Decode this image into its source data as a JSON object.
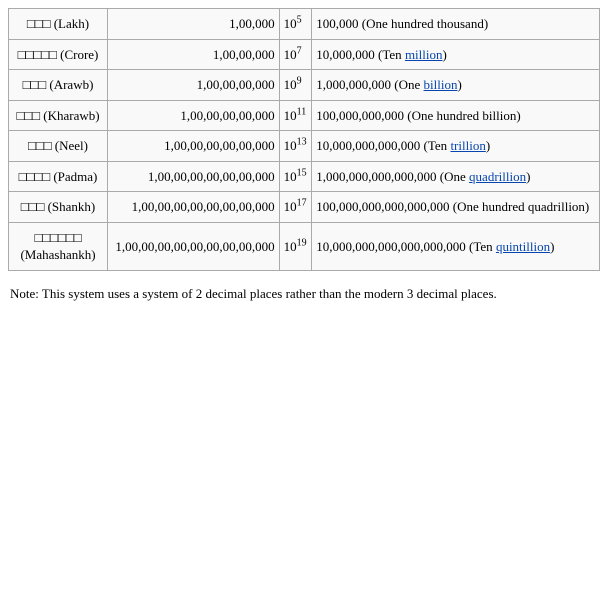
{
  "table": {
    "border_color": "#aaaaaa",
    "background_color": "#f9f9f9",
    "link_color": "#0645ad",
    "font_family": "Times New Roman",
    "font_size_pt": 10,
    "rows": [
      {
        "name_prefix": "□□□",
        "name_latin": "(Lakh)",
        "indian_number": "1,00,000",
        "power_base": "10",
        "power_exp": "5",
        "western_before": "100,000 (One hundred thousand)",
        "western_link": "",
        "western_after": ""
      },
      {
        "name_prefix": "□□□□□",
        "name_latin": "(Crore)",
        "indian_number": "1,00,00,000",
        "power_base": "10",
        "power_exp": "7",
        "western_before": "10,000,000 (Ten ",
        "western_link": "million",
        "western_after": ")"
      },
      {
        "name_prefix": "□□□",
        "name_latin": "(Arawb)",
        "indian_number": "1,00,00,00,000",
        "power_base": "10",
        "power_exp": "9",
        "western_before": "1,000,000,000 (One ",
        "western_link": "billion",
        "western_after": ")"
      },
      {
        "name_prefix": "□□□",
        "name_latin": "(Kharawb)",
        "indian_number": "1,00,00,00,00,000",
        "power_base": "10",
        "power_exp": "11",
        "western_before": "100,000,000,000 (One hundred billion)",
        "western_link": "",
        "western_after": ""
      },
      {
        "name_prefix": "□□□",
        "name_latin": "(Neel)",
        "indian_number": "1,00,00,00,00,00,000",
        "power_base": "10",
        "power_exp": "13",
        "western_before": "10,000,000,000,000 (Ten ",
        "western_link": "trillion",
        "western_after": ")"
      },
      {
        "name_prefix": "□□□□",
        "name_latin": "(Padma)",
        "indian_number": "1,00,00,00,00,00,00,000",
        "power_base": "10",
        "power_exp": "15",
        "western_before": "1,000,000,000,000,000 (One ",
        "western_link": "quadrillion",
        "western_after": ")"
      },
      {
        "name_prefix": "□□□",
        "name_latin": "(Shankh)",
        "indian_number": "1,00,00,00,00,00,00,00,000",
        "power_base": "10",
        "power_exp": "17",
        "western_before": "100,000,000,000,000,000 (One hundred quadrillion)",
        "western_link": "",
        "western_after": ""
      },
      {
        "name_prefix": "□□□□□□",
        "name_latin": "(Mahashankh)",
        "indian_number": "1,00,00,00,00,00,00,00,00,000",
        "power_base": "10",
        "power_exp": "19",
        "western_before": "10,000,000,000,000,000,000 (Ten ",
        "western_link": "quintillion",
        "western_after": ")"
      }
    ]
  },
  "note": "Note: This system uses a system of 2 decimal places rather than the modern 3 decimal places."
}
